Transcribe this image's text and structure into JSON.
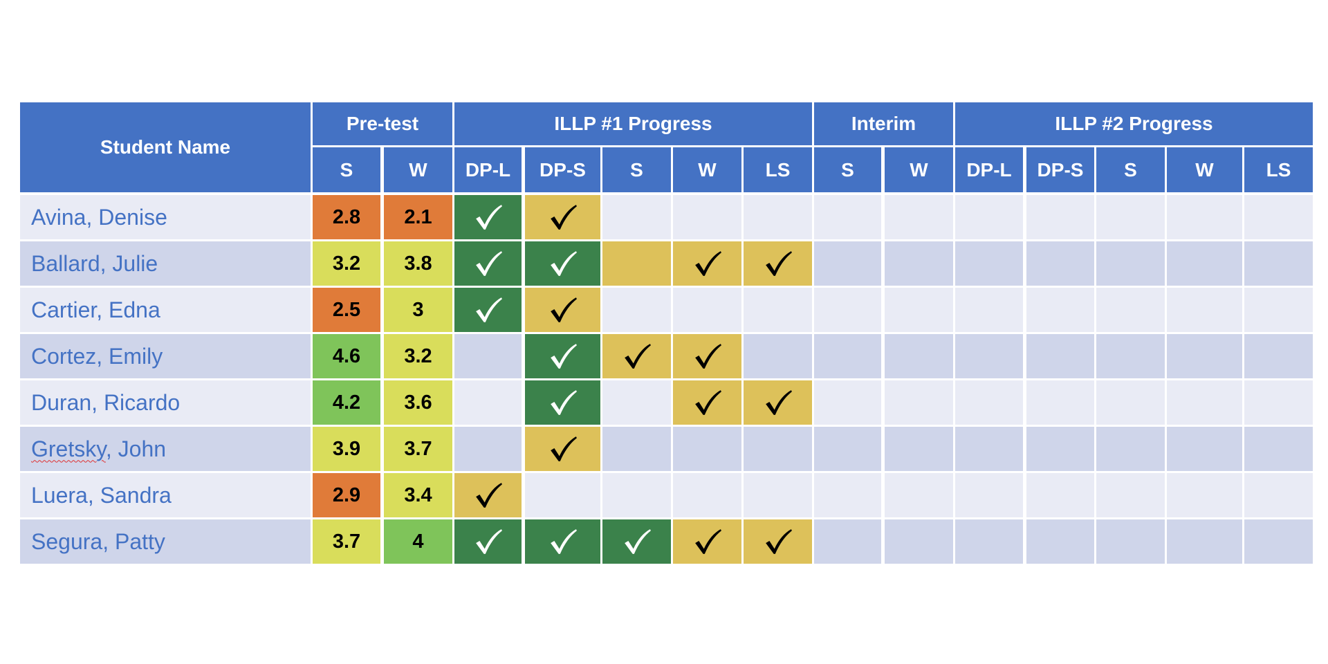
{
  "colors": {
    "header": "#4472C4",
    "row_light": "#E9EBF5",
    "row_dark": "#CFD5EA",
    "score_red": "#E07B39",
    "score_yellow": "#D9DD5B",
    "score_green": "#7FC45A",
    "progress_green": "#3B824B",
    "progress_yellow": "#DDC15A",
    "name_text": "#4472C4"
  },
  "header": {
    "student_name": "Student Name",
    "groups": [
      {
        "key": "pretest",
        "label": "Pre-test",
        "subcols": [
          "S",
          "W"
        ]
      },
      {
        "key": "illp1",
        "label": "ILLP #1 Progress",
        "subcols": [
          "DP-L",
          "DP-S",
          "S",
          "W",
          "LS"
        ]
      },
      {
        "key": "interim",
        "label": "Interim",
        "subcols": [
          "S",
          "W"
        ]
      },
      {
        "key": "illp2",
        "label": "ILLP #2 Progress",
        "subcols": [
          "DP-L",
          "DP-S",
          "S",
          "W",
          "LS"
        ]
      }
    ]
  },
  "rows": [
    {
      "name": "Avina, Denise",
      "pretest": [
        {
          "v": "2.8",
          "level": "red"
        },
        {
          "v": "2.1",
          "level": "red"
        }
      ],
      "illp1": [
        {
          "fill": "green",
          "check": true
        },
        {
          "fill": "yellow",
          "check": true
        },
        {
          "fill": "",
          "check": false
        },
        {
          "fill": "",
          "check": false
        },
        {
          "fill": "",
          "check": false
        }
      ]
    },
    {
      "name": "Ballard, Julie",
      "pretest": [
        {
          "v": "3.2",
          "level": "yellow"
        },
        {
          "v": "3.8",
          "level": "yellow"
        }
      ],
      "illp1": [
        {
          "fill": "green",
          "check": true
        },
        {
          "fill": "green",
          "check": true
        },
        {
          "fill": "yellow",
          "check": false
        },
        {
          "fill": "yellow",
          "check": true
        },
        {
          "fill": "yellow",
          "check": true
        }
      ]
    },
    {
      "name": "Cartier, Edna",
      "pretest": [
        {
          "v": "2.5",
          "level": "red"
        },
        {
          "v": "3",
          "level": "yellow"
        }
      ],
      "illp1": [
        {
          "fill": "green",
          "check": true
        },
        {
          "fill": "yellow",
          "check": true
        },
        {
          "fill": "",
          "check": false
        },
        {
          "fill": "",
          "check": false
        },
        {
          "fill": "",
          "check": false
        }
      ]
    },
    {
      "name": "Cortez, Emily",
      "pretest": [
        {
          "v": "4.6",
          "level": "green"
        },
        {
          "v": "3.2",
          "level": "yellow"
        }
      ],
      "illp1": [
        {
          "fill": "",
          "check": false
        },
        {
          "fill": "green",
          "check": true
        },
        {
          "fill": "yellow",
          "check": true
        },
        {
          "fill": "yellow",
          "check": true
        },
        {
          "fill": "",
          "check": false
        }
      ]
    },
    {
      "name": "Duran, Ricardo",
      "pretest": [
        {
          "v": "4.2",
          "level": "green"
        },
        {
          "v": "3.6",
          "level": "yellow"
        }
      ],
      "illp1": [
        {
          "fill": "",
          "check": false
        },
        {
          "fill": "green",
          "check": true
        },
        {
          "fill": "",
          "check": false
        },
        {
          "fill": "yellow",
          "check": true
        },
        {
          "fill": "yellow",
          "check": true
        }
      ]
    },
    {
      "name": "Gretsky, John",
      "spellcheck": true,
      "pretest": [
        {
          "v": "3.9",
          "level": "yellow"
        },
        {
          "v": "3.7",
          "level": "yellow"
        }
      ],
      "illp1": [
        {
          "fill": "",
          "check": false
        },
        {
          "fill": "yellow",
          "check": true
        },
        {
          "fill": "",
          "check": false
        },
        {
          "fill": "",
          "check": false
        },
        {
          "fill": "",
          "check": false
        }
      ]
    },
    {
      "name": "Luera, Sandra",
      "pretest": [
        {
          "v": "2.9",
          "level": "red"
        },
        {
          "v": "3.4",
          "level": "yellow"
        }
      ],
      "illp1": [
        {
          "fill": "yellow",
          "check": true
        },
        {
          "fill": "",
          "check": false
        },
        {
          "fill": "",
          "check": false
        },
        {
          "fill": "",
          "check": false
        },
        {
          "fill": "",
          "check": false
        }
      ]
    },
    {
      "name": "Segura, Patty",
      "pretest": [
        {
          "v": "3.7",
          "level": "yellow"
        },
        {
          "v": "4",
          "level": "green"
        }
      ],
      "illp1": [
        {
          "fill": "green",
          "check": true
        },
        {
          "fill": "green",
          "check": true
        },
        {
          "fill": "green",
          "check": true
        },
        {
          "fill": "yellow",
          "check": true
        },
        {
          "fill": "yellow",
          "check": true
        }
      ]
    }
  ]
}
